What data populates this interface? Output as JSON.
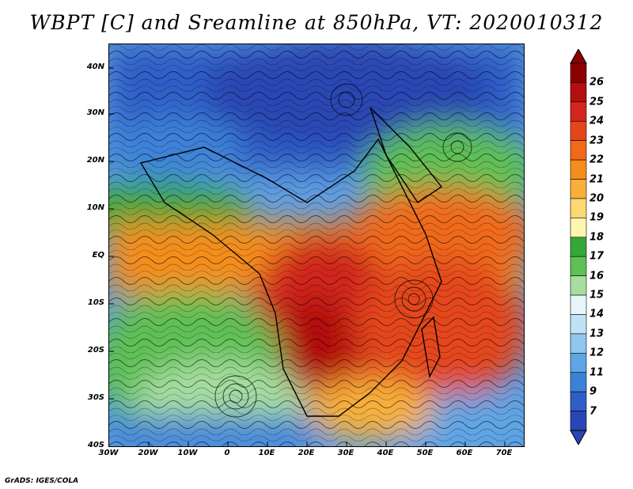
{
  "title": "WBPT [C] and Sreamline at 850hPa, VT: 2020010312",
  "credit": "GrADS: IGES/COLA",
  "map": {
    "lat_labels": [
      "40N",
      "30N",
      "20N",
      "10N",
      "EQ",
      "10S",
      "20S",
      "30S",
      "40S"
    ],
    "lon_labels": [
      "30W",
      "20W",
      "10W",
      "0",
      "10E",
      "20E",
      "30E",
      "40E",
      "50E",
      "60E",
      "70E"
    ]
  },
  "colorbar": {
    "labels": [
      "26",
      "25",
      "24",
      "23",
      "22",
      "21",
      "20",
      "19",
      "18",
      "17",
      "16",
      "15",
      "14",
      "13",
      "12",
      "11",
      "9",
      "7"
    ],
    "colors": [
      "#8b0000",
      "#b40f0f",
      "#d2261e",
      "#e4461c",
      "#f06a1a",
      "#f58d1e",
      "#f8b03a",
      "#fcd872",
      "#fff5b0",
      "#35a73a",
      "#5ec055",
      "#a7dea0",
      "#e6f6f8",
      "#bfe3f5",
      "#8fc6ee",
      "#5ea6e4",
      "#3c82d8",
      "#2f5ec8",
      "#2a46b4"
    ]
  }
}
